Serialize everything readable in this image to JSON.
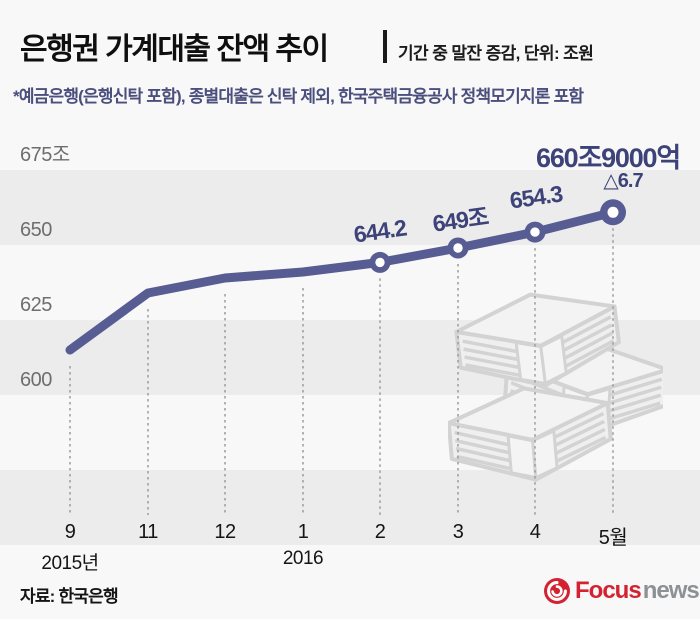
{
  "header": {
    "title": "은행권 가계대출 잔액 추이",
    "subtitle": "기간 중 말잔 증감, 단위: 조원",
    "note": "*예금은행(은행신탁 포함), 종별대출은 신탁 제외, 한국주택금융공사 정책모기지론 포함"
  },
  "chart_data": {
    "type": "line",
    "title": "은행권 가계대출 잔액 추이",
    "unit": "조원",
    "x": [
      "9",
      "11",
      "12",
      "1",
      "2",
      "3",
      "4",
      "5월"
    ],
    "x_year_labels": [
      {
        "label": "2015년",
        "index": 0
      },
      {
        "label": "2016",
        "index": 3
      }
    ],
    "values": [
      615,
      634,
      639,
      641,
      644.2,
      649,
      654.3,
      660.9
    ],
    "point_labels": [
      null,
      null,
      null,
      null,
      "644.2",
      "649조",
      "654.3",
      "660조9000억"
    ],
    "last_point_change_label": "△6.7",
    "yticks": [
      "675조",
      "650",
      "625",
      "600"
    ],
    "ytick_values": [
      675,
      650,
      625,
      600
    ],
    "ylim": [
      550,
      687
    ],
    "grid": "alternating-horizontal-bands",
    "legend": "none",
    "line_color": "#575d93",
    "label_color": "#3d4278",
    "band_color": "#ececec",
    "background_color": "#f8f8f8"
  },
  "footer": {
    "source": "자료: 한국은행",
    "logo": {
      "focus": "Focus",
      "news": "news",
      "brand_red": "#d32330",
      "brand_gray": "#8d9194"
    }
  }
}
